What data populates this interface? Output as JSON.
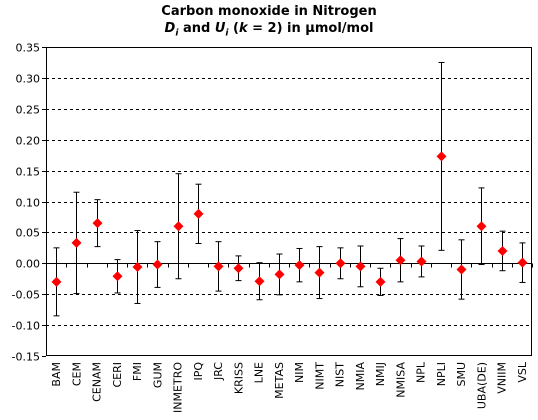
{
  "title_line1": "Carbon monoxide in Nitrogen",
  "title_line2": {
    "d": "D",
    "d_sub": "i",
    "and": " and ",
    "u": "U",
    "u_sub": "i",
    "open": " (",
    "k": "k",
    "k_eq": " = 2) in µmol/mol"
  },
  "colors": {
    "marker": "#ff0000",
    "errorbar": "#000000",
    "gridline": "#000000",
    "axis": "#000000"
  },
  "chart_data": {
    "type": "scatter",
    "ylim": [
      -0.15,
      0.35
    ],
    "ytick_step": 0.05,
    "y_ticks": [
      "-0.15",
      "-0.10",
      "-0.05",
      "0.00",
      "0.05",
      "0.10",
      "0.15",
      "0.20",
      "0.25",
      "0.30",
      "0.35"
    ],
    "grid": "horizontal-dashed",
    "marker": "diamond",
    "categories": [
      "BAM",
      "CEM",
      "CENAM",
      "CERI",
      "FMI",
      "GUM",
      "INMETRO",
      "IPQ",
      "JRC",
      "KRISS",
      "LNE",
      "METAS",
      "NIM",
      "NIMT",
      "NIST",
      "NMIA",
      "NMIJ",
      "NMISA",
      "NPL",
      "NPLI",
      "SMU",
      "UBA(DE)",
      "VNIIM",
      "VSL"
    ],
    "values": [
      -0.03,
      0.033,
      0.065,
      -0.021,
      -0.006,
      -0.002,
      0.06,
      0.08,
      -0.005,
      -0.008,
      -0.029,
      -0.018,
      -0.003,
      -0.015,
      0.0,
      -0.005,
      -0.03,
      0.005,
      0.003,
      0.173,
      -0.01,
      0.06,
      0.02,
      0.001
    ],
    "uncertainty": [
      0.055,
      0.082,
      0.038,
      0.027,
      0.059,
      0.037,
      0.085,
      0.048,
      0.04,
      0.02,
      0.03,
      0.033,
      0.027,
      0.042,
      0.025,
      0.033,
      0.022,
      0.035,
      0.025,
      0.152,
      0.048,
      0.062,
      0.032,
      0.032
    ]
  }
}
